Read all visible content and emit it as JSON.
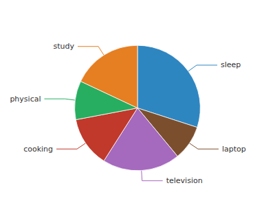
{
  "chart_data": {
    "type": "pie",
    "categories": [
      "sleep",
      "laptop",
      "television",
      "cooking",
      "physical",
      "study"
    ],
    "values": [
      30,
      9,
      20,
      13,
      10,
      18
    ],
    "colors": [
      "#2E86C1",
      "#7B4F2E",
      "#A569BD",
      "#C0392B",
      "#27AE60",
      "#E67E22"
    ]
  }
}
